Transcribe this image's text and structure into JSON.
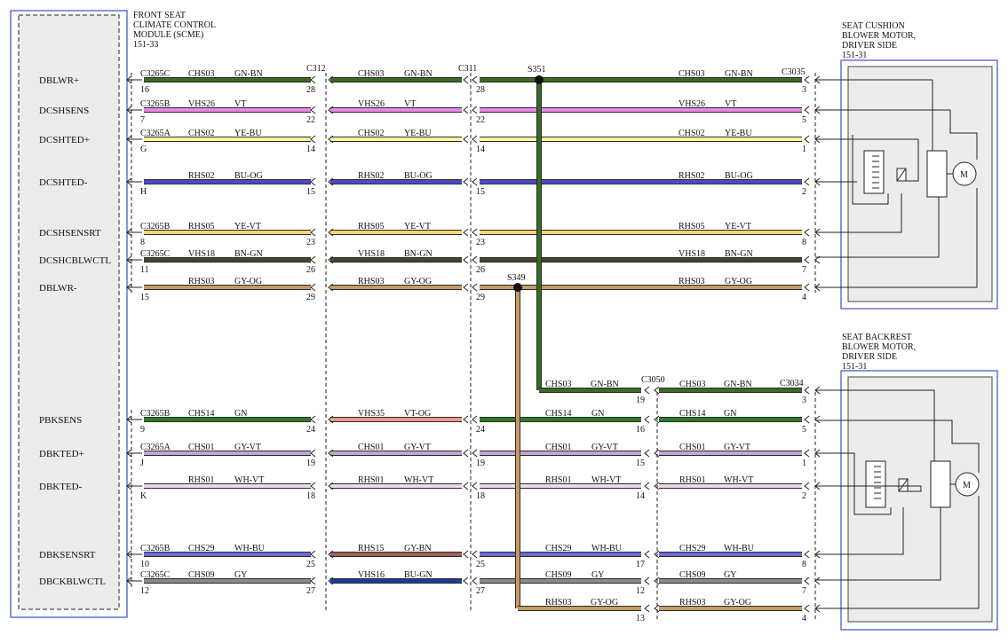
{
  "module": {
    "name_lines": [
      "FRONT SEAT",
      "CLIMATE CONTROL",
      "MODULE (SCME)",
      "151-33"
    ]
  },
  "cushion": {
    "name_lines": [
      "SEAT CUSHION",
      "BLOWER MOTOR,",
      "DRIVER SIDE",
      "151-31"
    ]
  },
  "backrest": {
    "name_lines": [
      "SEAT BACKREST",
      "BLOWER MOTOR,",
      "DRIVER SIDE",
      "151-31"
    ]
  },
  "connectors": {
    "c312": "C312",
    "c311": "C311",
    "c3035": "C3035",
    "c3050": "C3050",
    "c3034": "C3034",
    "s351": "S351",
    "s349": "S349"
  },
  "motor_label": "M",
  "signals": [
    "DBLWR+",
    "DCSHSENS",
    "DCSHTED+",
    "DCSHTED-",
    "DCSHSENSRT",
    "DCSHCBLWCTL",
    "DBLWR-",
    "PBKSENS",
    "DBKTED+",
    "DBKTED-",
    "DBKSENSRT",
    "DBCKBLWCTL"
  ],
  "wires": [
    {
      "conn": "C3265C",
      "pin_a": "16",
      "s1_circ": "CHS03",
      "s1_col": "GN-BN",
      "pin_b": "28",
      "s2_circ": "CHS03",
      "s2_col": "GN-BN",
      "pin_c": "28",
      "s3_circ": "CHS03",
      "s3_col": "GN-BN",
      "pin_d": "3"
    },
    {
      "conn": "C3265B",
      "pin_a": "7",
      "s1_circ": "VHS26",
      "s1_col": "VT",
      "pin_b": "22",
      "s2_circ": "VHS26",
      "s2_col": "VT",
      "pin_c": "22",
      "s3_circ": "VHS26",
      "s3_col": "VT",
      "pin_d": "5"
    },
    {
      "conn": "C3265A",
      "pin_a": "G",
      "s1_circ": "CHS02",
      "s1_col": "YE-BU",
      "pin_b": "14",
      "s2_circ": "CHS02",
      "s2_col": "YE-BU",
      "pin_c": "14",
      "s3_circ": "CHS02",
      "s3_col": "YE-BU",
      "pin_d": "1"
    },
    {
      "conn": "",
      "pin_a": "H",
      "s1_circ": "RHS02",
      "s1_col": "BU-OG",
      "pin_b": "15",
      "s2_circ": "RHS02",
      "s2_col": "BU-OG",
      "pin_c": "15",
      "s3_circ": "RHS02",
      "s3_col": "BU-OG",
      "pin_d": "2"
    },
    {
      "conn": "C3265B",
      "pin_a": "8",
      "s1_circ": "RHS05",
      "s1_col": "YE-VT",
      "pin_b": "23",
      "s2_circ": "RHS05",
      "s2_col": "YE-VT",
      "pin_c": "23",
      "s3_circ": "RHS05",
      "s3_col": "YE-VT",
      "pin_d": "8"
    },
    {
      "conn": "C3265C",
      "pin_a": "11",
      "s1_circ": "VHS18",
      "s1_col": "BN-GN",
      "pin_b": "26",
      "s2_circ": "VHS18",
      "s2_col": "BN-GN",
      "pin_c": "26",
      "s3_circ": "VHS18",
      "s3_col": "BN-GN",
      "pin_d": "7"
    },
    {
      "conn": "",
      "pin_a": "15",
      "s1_circ": "RHS03",
      "s1_col": "GY-OG",
      "pin_b": "29",
      "s2_circ": "RHS03",
      "s2_col": "GY-OG",
      "pin_c": "29",
      "s3_circ": "RHS03",
      "s3_col": "GY-OG",
      "pin_d": "4"
    },
    {
      "conn": "C3265B",
      "pin_a": "9",
      "s1_circ": "CHS14",
      "s1_col": "GN",
      "pin_b": "24",
      "s2_circ": "VHS35",
      "s2_col": "VT-OG",
      "pin_c": "24",
      "s3_circ": "CHS14",
      "s3_col": "GN",
      "pin_d": "16",
      "s4_circ": "CHS14",
      "s4_col": "GN",
      "pin_e": "5"
    },
    {
      "conn": "C3265A",
      "pin_a": "J",
      "s1_circ": "CHS01",
      "s1_col": "GY-VT",
      "pin_b": "19",
      "s2_circ": "CHS01",
      "s2_col": "GY-VT",
      "pin_c": "19",
      "s3_circ": "CHS01",
      "s3_col": "GY-VT",
      "pin_d": "15",
      "s4_circ": "CHS01",
      "s4_col": "GY-VT",
      "pin_e": "1"
    },
    {
      "conn": "",
      "pin_a": "K",
      "s1_circ": "RHS01",
      "s1_col": "WH-VT",
      "pin_b": "18",
      "s2_circ": "RHS01",
      "s2_col": "WH-VT",
      "pin_c": "18",
      "s3_circ": "RHS01",
      "s3_col": "WH-VT",
      "pin_d": "14",
      "s4_circ": "RHS01",
      "s4_col": "WH-VT",
      "pin_e": "2"
    },
    {
      "conn": "C3265B",
      "pin_a": "10",
      "s1_circ": "CHS29",
      "s1_col": "WH-BU",
      "pin_b": "25",
      "s2_circ": "RHS15",
      "s2_col": "GY-BN",
      "pin_c": "25",
      "s3_circ": "CHS29",
      "s3_col": "WH-BU",
      "pin_d": "17",
      "s4_circ": "CHS29",
      "s4_col": "WH-BU",
      "pin_e": "8"
    },
    {
      "conn": "C3265C",
      "pin_a": "12",
      "s1_circ": "CHS09",
      "s1_col": "GY",
      "pin_b": "27",
      "s2_circ": "VHS16",
      "s2_col": "BU-GN",
      "pin_c": "27",
      "s3_circ": "CHS09",
      "s3_col": "GY",
      "pin_d": "12",
      "s4_circ": "CHS09",
      "s4_col": "GY",
      "pin_e": "7"
    }
  ],
  "s351_branch": {
    "circ": "CHS03",
    "col": "GN-BN",
    "pin": "19",
    "right_circ": "CHS03",
    "right_col": "GN-BN",
    "right_pin": "3"
  },
  "s349_branch": {
    "circ": "RHS03",
    "col": "GY-OG",
    "pin": "13",
    "right_circ": "RHS03",
    "right_col": "GY-OG",
    "right_pin": "4"
  },
  "wire_colors": {
    "GN-BN": "#3a6b22",
    "VT": "#e58ae6",
    "YE-BU": "#fff3a0",
    "BU-OG": "#4a4ac8",
    "YE-VT": "#ffd37a",
    "BN-GN": "#4a4228",
    "GY-OG": "#c49a64",
    "GN": "#2f7a2a",
    "VT-OG": "#e89a86",
    "GY-VT": "#c4a6d2",
    "WH-VT": "#f0d8f0",
    "WH-BU": "#6c6cd6",
    "GY-BN": "#a0645a",
    "GY": "#8a8a8a",
    "BU-GN": "#1d3b8f"
  }
}
